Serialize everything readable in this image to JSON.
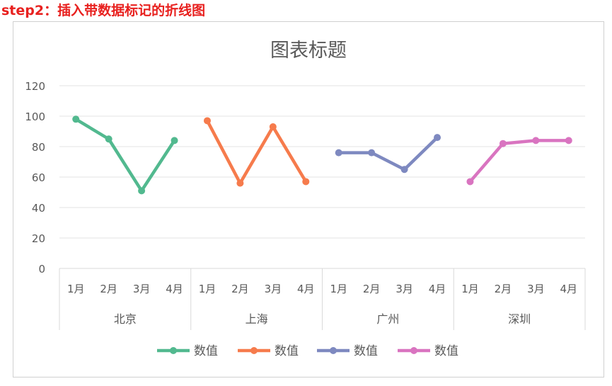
{
  "header": {
    "step_title": "step2：插入带数据标记的折线图"
  },
  "chart_data": {
    "type": "line",
    "title": "图表标题",
    "ylim": [
      0,
      120
    ],
    "yticks": [
      0,
      20,
      40,
      60,
      80,
      100,
      120
    ],
    "grid": true,
    "legend_position": "bottom",
    "groups": [
      "北京",
      "上海",
      "广州",
      "深圳"
    ],
    "months": [
      "1月",
      "2月",
      "3月",
      "4月"
    ],
    "series": [
      {
        "group": "北京",
        "name": "数值",
        "color": "#52b98f",
        "values": [
          98,
          85,
          51,
          84
        ]
      },
      {
        "group": "上海",
        "name": "数值",
        "color": "#f67b4c",
        "values": [
          97,
          56,
          93,
          57
        ]
      },
      {
        "group": "广州",
        "name": "数值",
        "color": "#7e89c0",
        "values": [
          76,
          76,
          65,
          86
        ]
      },
      {
        "group": "深圳",
        "name": "数值",
        "color": "#d974c0",
        "values": [
          57,
          82,
          84,
          84
        ]
      }
    ]
  }
}
